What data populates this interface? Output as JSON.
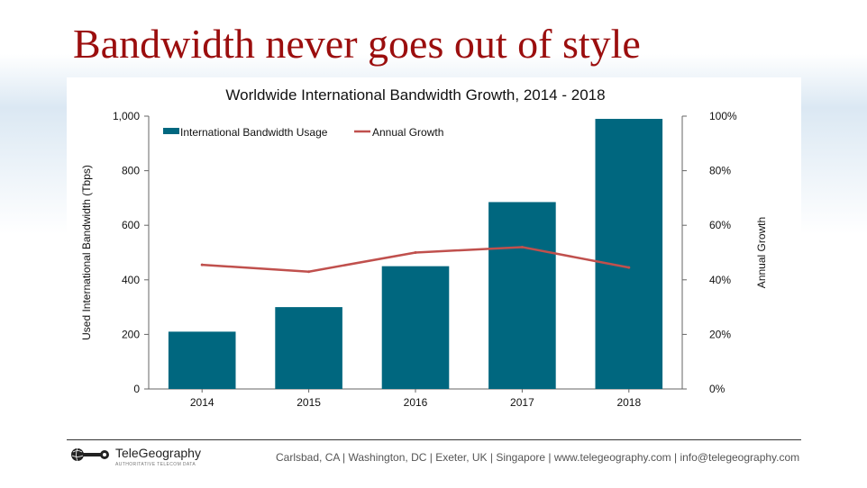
{
  "slide": {
    "title": "Bandwidth never goes out of style"
  },
  "chart_data": {
    "type": "bar",
    "title": "Worldwide International Bandwidth Growth, 2014 - 2018",
    "categories": [
      "2014",
      "2015",
      "2016",
      "2017",
      "2018"
    ],
    "series": [
      {
        "name": "International Bandwidth Usage",
        "type": "bar",
        "axis": "left",
        "color": "#00677f",
        "values": [
          210,
          300,
          450,
          685,
          990
        ]
      },
      {
        "name": "Annual Growth",
        "type": "line",
        "axis": "right",
        "color": "#c0504d",
        "values": [
          45.5,
          43.0,
          50.0,
          52.0,
          44.5
        ]
      }
    ],
    "ylabel": "Used International Bandwidth (Tbps)",
    "ylim": [
      0,
      1000
    ],
    "y_ticks": [
      "0",
      "200",
      "400",
      "600",
      "800",
      "1,000"
    ],
    "y2label": "Annual Growth",
    "y2lim": [
      0,
      100
    ],
    "y2_ticks": [
      "0%",
      "20%",
      "40%",
      "60%",
      "80%",
      "100%"
    ],
    "grid": false,
    "legend": "top-left"
  },
  "footer": {
    "logo_name": "TeleGeography",
    "logo_tagline": "AUTHORITATIVE TELECOM DATA",
    "contacts": "Carlsbad, CA | Washington, DC | Exeter, UK | Singapore | www.telegeography.com | info@telegeography.com"
  }
}
